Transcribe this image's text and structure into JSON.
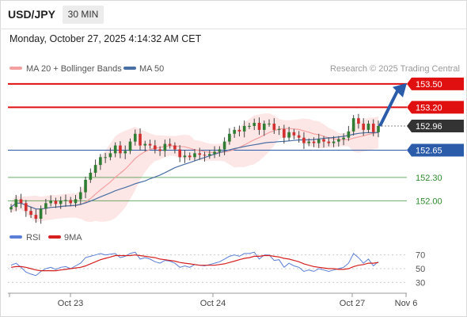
{
  "header": {
    "symbol": "USD/JPY",
    "timeframe": "30 MIN"
  },
  "datetime": "Monday, October 27, 2025 4:14:32 AM CET",
  "legend": {
    "ma20": "MA 20 + Bollinger Bands",
    "ma50": "MA 50",
    "rsi": "RSI",
    "rsi_ma": "9MA",
    "credit": "Research © 2025 Trading Central"
  },
  "colors": {
    "resistance": "#e01010",
    "current": "#333333",
    "pivot": "#2a5caa",
    "support": "#2e8b2e",
    "ma20": "#f4a0a0",
    "ma50": "#4a6fa5",
    "band": "#fde2e2",
    "candle_up": "#2e7d32",
    "candle_down": "#d32f2f",
    "rsi": "#5b7fd6",
    "rsi_ma": "#d62020",
    "arrow": "#2a5caa"
  },
  "chart_data": {
    "type": "candlestick",
    "ylim": [
      151.75,
      153.6
    ],
    "levels": [
      {
        "label": "153.50",
        "value": 153.5,
        "kind": "resistance"
      },
      {
        "label": "153.20",
        "value": 153.2,
        "kind": "resistance"
      },
      {
        "label": "152.96",
        "value": 152.96,
        "kind": "current"
      },
      {
        "label": "152.65",
        "value": 152.65,
        "kind": "pivot"
      },
      {
        "label": "152.30",
        "value": 152.3,
        "kind": "support"
      },
      {
        "label": "152.00",
        "value": 152.0,
        "kind": "support"
      }
    ],
    "x_ticks": [
      "Oct 23",
      "Oct 24",
      "Oct 27",
      "Nov 6"
    ],
    "rsi_ticks": [
      "70",
      "50",
      "30"
    ],
    "forecast_arrow": {
      "from": 152.96,
      "to": 153.5
    },
    "candles_close": [
      151.92,
      152.02,
      151.97,
      151.87,
      151.82,
      151.77,
      151.9,
      151.97,
      152.0,
      151.96,
      152.0,
      152.01,
      151.97,
      152.02,
      152.11,
      152.27,
      152.36,
      152.46,
      152.56,
      152.56,
      152.61,
      152.71,
      152.61,
      152.64,
      152.76,
      152.86,
      152.71,
      152.73,
      152.71,
      152.66,
      152.64,
      152.73,
      152.71,
      152.66,
      152.56,
      152.58,
      152.56,
      152.61,
      152.59,
      152.58,
      152.6,
      152.63,
      152.66,
      152.76,
      152.86,
      152.91,
      152.89,
      152.96,
      152.96,
      153.0,
      152.91,
      152.99,
      152.99,
      152.91,
      152.92,
      152.81,
      152.88,
      152.84,
      152.81,
      152.74,
      152.76,
      152.74,
      152.79,
      152.76,
      152.74,
      152.76,
      152.79,
      152.81,
      152.89,
      153.06,
      152.99,
      152.91,
      152.99,
      152.88,
      152.96
    ],
    "rsi_values": [
      55,
      58,
      52,
      45,
      42,
      40,
      46,
      50,
      52,
      49,
      52,
      53,
      50,
      54,
      58,
      66,
      68,
      70,
      72,
      70,
      71,
      72,
      66,
      68,
      72,
      74,
      64,
      66,
      64,
      60,
      58,
      62,
      61,
      58,
      52,
      54,
      52,
      56,
      55,
      54,
      56,
      58,
      60,
      64,
      68,
      70,
      68,
      72,
      72,
      74,
      64,
      70,
      70,
      62,
      63,
      52,
      58,
      54,
      52,
      46,
      48,
      46,
      50,
      48,
      46,
      48,
      50,
      52,
      58,
      72,
      66,
      58,
      64,
      54,
      60
    ],
    "rsi_ma_values": [
      52,
      53,
      53,
      52,
      50,
      48,
      47,
      47,
      47,
      47,
      48,
      49,
      50,
      51,
      52,
      54,
      57,
      60,
      63,
      65,
      67,
      69,
      69,
      69,
      69,
      70,
      69,
      68,
      67,
      66,
      64,
      63,
      62,
      61,
      59,
      58,
      57,
      56,
      55,
      55,
      55,
      55,
      56,
      57,
      59,
      61,
      63,
      65,
      66,
      68,
      68,
      69,
      69,
      68,
      67,
      65,
      64,
      62,
      60,
      57,
      55,
      53,
      52,
      51,
      50,
      50,
      49,
      49,
      50,
      53,
      55,
      56,
      58,
      58,
      59
    ]
  }
}
